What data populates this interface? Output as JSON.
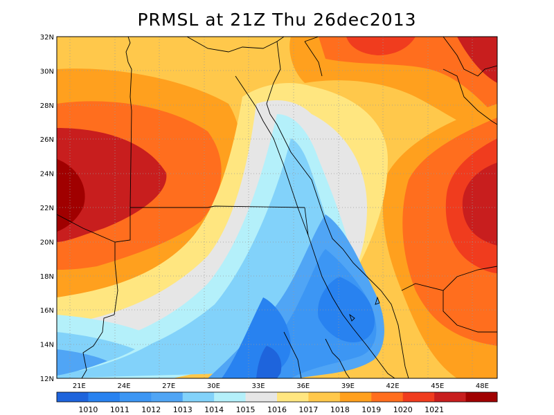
{
  "title": "PRMSL at 21Z Thu 26dec2013",
  "map": {
    "lon_range": [
      19.5,
      49
    ],
    "lat_range": [
      12,
      32
    ],
    "lon_ticks": [
      "21E",
      "24E",
      "27E",
      "30E",
      "33E",
      "36E",
      "39E",
      "42E",
      "45E",
      "48E"
    ],
    "lon_tick_values": [
      21,
      24,
      27,
      30,
      33,
      36,
      39,
      42,
      45,
      48
    ],
    "lat_ticks": [
      "12N",
      "14N",
      "16N",
      "18N",
      "20N",
      "22N",
      "24N",
      "26N",
      "28N",
      "30N",
      "32N"
    ],
    "lat_tick_values": [
      12,
      14,
      16,
      18,
      20,
      22,
      24,
      26,
      28,
      30,
      32
    ],
    "grid": "dotted",
    "variable": "PRMSL"
  },
  "colorbar": {
    "labels": [
      "1010",
      "1011",
      "1012",
      "1013",
      "1014",
      "1015",
      "1016",
      "1017",
      "1018",
      "1019",
      "1020",
      "1021"
    ],
    "colors": [
      "#1e64dc",
      "#2882f0",
      "#3c96f4",
      "#50a5f5",
      "#82d2fa",
      "#b4f0fa",
      "#e6e6e6",
      "#ffe680",
      "#ffc84b",
      "#ffa01e",
      "#ff6e1e",
      "#f03c1e",
      "#c81e1e",
      "#a00000"
    ]
  },
  "legend_colors": {
    "low": "#1e64dc",
    "high": "#a00000"
  }
}
